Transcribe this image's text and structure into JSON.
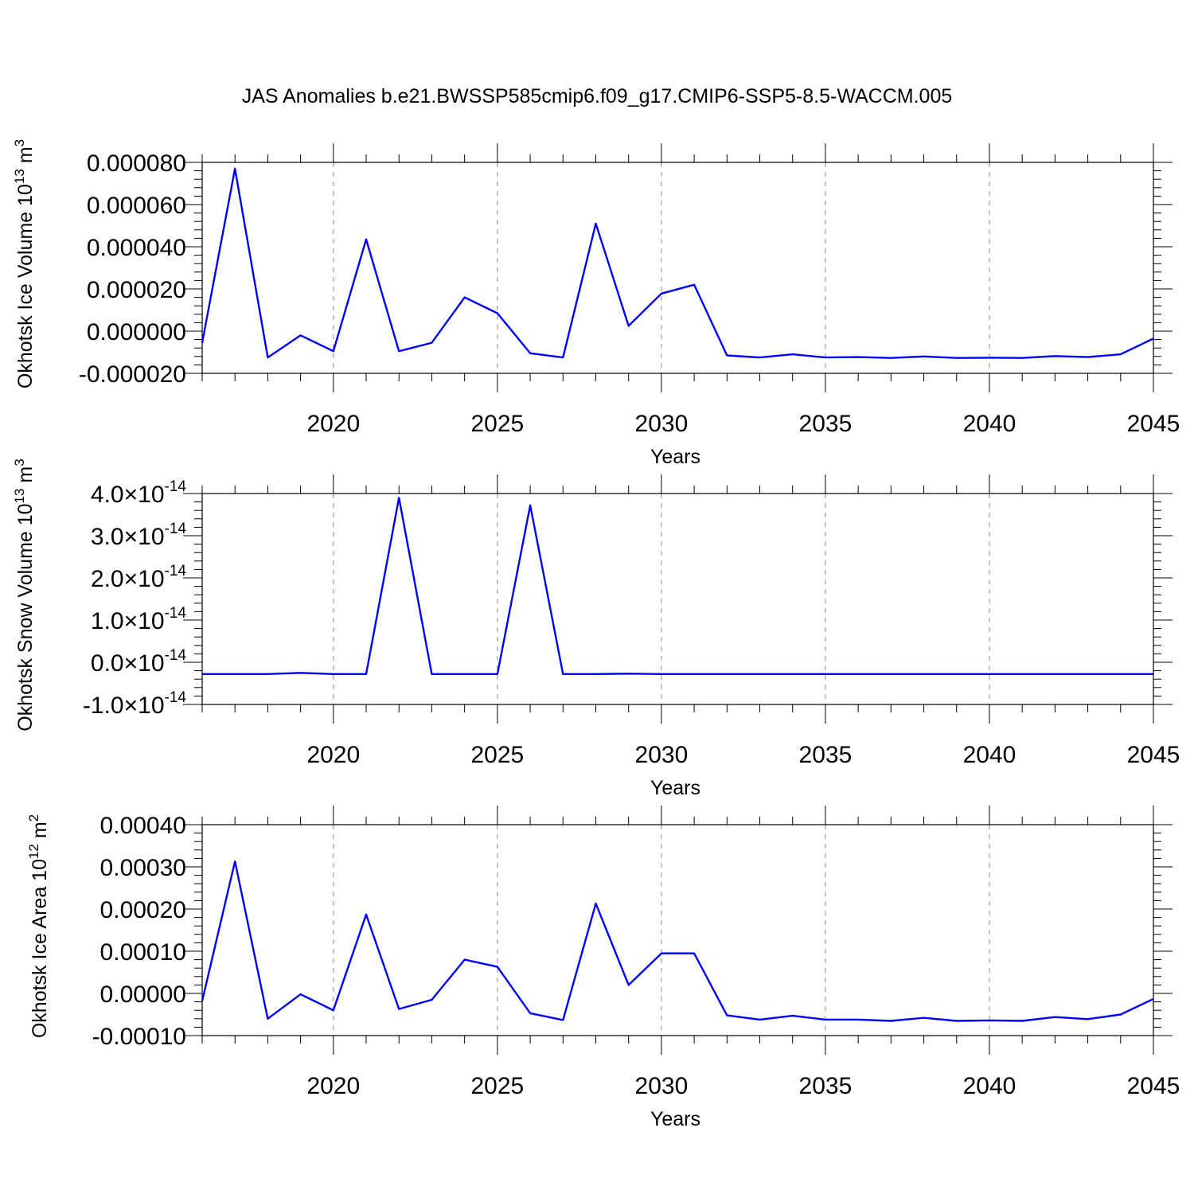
{
  "figure": {
    "title": "JAS Anomalies b.e21.BWSSP585cmip6.f09_g17.CMIP6-SSP5-8.5-WACCM.005"
  },
  "colors": {
    "series": "#0000ff",
    "grid": "#888888",
    "axis": "#000000"
  },
  "chart_data": [
    {
      "type": "line",
      "title": "",
      "xlabel": "Years",
      "ylabel": "Okhotsk Ice Volume",
      "ylabel_unit": {
        "base": "10",
        "exp": "13",
        "unit": "m",
        "unit_exp": "3"
      },
      "xlim": [
        2016,
        2045
      ],
      "ylim": [
        -2e-05,
        8e-05
      ],
      "x_ticks": [
        2020,
        2025,
        2030,
        2035,
        2040,
        2045
      ],
      "x_tick_labels": [
        "2020",
        "2025",
        "2030",
        "2035",
        "2040",
        "2045"
      ],
      "y_ticks": [
        -2e-05,
        0.0,
        2e-05,
        4e-05,
        6e-05,
        8e-05
      ],
      "y_tick_labels": [
        "-0.000020",
        "0.000000",
        "0.000020",
        "0.000040",
        "0.000060",
        "0.000080"
      ],
      "grid": "vertical dashed at major x ticks",
      "x": [
        2016,
        2017,
        2018,
        2019,
        2020,
        2021,
        2022,
        2023,
        2024,
        2025,
        2026,
        2027,
        2028,
        2029,
        2030,
        2031,
        2032,
        2033,
        2034,
        2035,
        2036,
        2037,
        2038,
        2039,
        2040,
        2041,
        2042,
        2043,
        2044,
        2045
      ],
      "series": [
        {
          "values": [
            -5.5e-06,
            7.7e-05,
            -1.25e-05,
            -2e-06,
            -9.5e-06,
            4.35e-05,
            -9.5e-06,
            -5.5e-06,
            1.6e-05,
            8.5e-06,
            -1.05e-05,
            -1.25e-05,
            5.1e-05,
            2.5e-06,
            1.78e-05,
            2.2e-05,
            -1.15e-05,
            -1.25e-05,
            -1.1e-05,
            -1.25e-05,
            -1.23e-05,
            -1.27e-05,
            -1.2e-05,
            -1.27e-05,
            -1.26e-05,
            -1.27e-05,
            -1.18e-05,
            -1.23e-05,
            -1.1e-05,
            -3.5e-06
          ]
        }
      ]
    },
    {
      "type": "line",
      "title": "",
      "xlabel": "Years",
      "ylabel": "Okhotsk Snow Volume",
      "ylabel_unit": {
        "base": "10",
        "exp": "13",
        "unit": "m",
        "unit_exp": "3"
      },
      "xlim": [
        2016,
        2045
      ],
      "ylim": [
        -1e-14,
        4e-14
      ],
      "x_ticks": [
        2020,
        2025,
        2030,
        2035,
        2040,
        2045
      ],
      "x_tick_labels": [
        "2020",
        "2025",
        "2030",
        "2035",
        "2040",
        "2045"
      ],
      "y_ticks": [
        -1e-14,
        0.0,
        1e-14,
        2e-14,
        3e-14,
        4e-14
      ],
      "y_tick_labels": [
        {
          "mantissa": "-1.0",
          "times": "×",
          "base": "10",
          "exp": "-14"
        },
        {
          "mantissa": "0.0",
          "times": "×",
          "base": "10",
          "exp": "-14"
        },
        {
          "mantissa": "1.0",
          "times": "×",
          "base": "10",
          "exp": "-14"
        },
        {
          "mantissa": "2.0",
          "times": "×",
          "base": "10",
          "exp": "-14"
        },
        {
          "mantissa": "3.0",
          "times": "×",
          "base": "10",
          "exp": "-14"
        },
        {
          "mantissa": "4.0",
          "times": "×",
          "base": "10",
          "exp": "-14"
        }
      ],
      "grid": "vertical dashed at major x ticks",
      "x": [
        2016,
        2017,
        2018,
        2019,
        2020,
        2021,
        2022,
        2023,
        2024,
        2025,
        2026,
        2027,
        2028,
        2029,
        2030,
        2031,
        2032,
        2033,
        2034,
        2035,
        2036,
        2037,
        2038,
        2039,
        2040,
        2041,
        2042,
        2043,
        2044,
        2045
      ],
      "series": [
        {
          "values": [
            -2.8e-15,
            -2.8e-15,
            -2.8e-15,
            -2.5e-15,
            -2.8e-15,
            -2.8e-15,
            3.9e-14,
            -2.8e-15,
            -2.8e-15,
            -2.8e-15,
            3.72e-14,
            -2.8e-15,
            -2.8e-15,
            -2.7e-15,
            -2.8e-15,
            -2.8e-15,
            -2.8e-15,
            -2.8e-15,
            -2.8e-15,
            -2.8e-15,
            -2.8e-15,
            -2.8e-15,
            -2.8e-15,
            -2.8e-15,
            -2.8e-15,
            -2.8e-15,
            -2.8e-15,
            -2.8e-15,
            -2.8e-15,
            -2.8e-15
          ]
        }
      ]
    },
    {
      "type": "line",
      "title": "",
      "xlabel": "Years",
      "ylabel": "Okhotsk Ice Area",
      "ylabel_unit": {
        "base": "10",
        "exp": "12",
        "unit": "m",
        "unit_exp": "2"
      },
      "xlim": [
        2016,
        2045
      ],
      "ylim": [
        -0.0001,
        0.0004
      ],
      "x_ticks": [
        2020,
        2025,
        2030,
        2035,
        2040,
        2045
      ],
      "x_tick_labels": [
        "2020",
        "2025",
        "2030",
        "2035",
        "2040",
        "2045"
      ],
      "y_ticks": [
        -0.0001,
        0.0,
        0.0001,
        0.0002,
        0.0003,
        0.0004
      ],
      "y_tick_labels": [
        "-0.00010",
        "0.00000",
        "0.00010",
        "0.00020",
        "0.00030",
        "0.00040"
      ],
      "grid": "vertical dashed at major x ticks",
      "x": [
        2016,
        2017,
        2018,
        2019,
        2020,
        2021,
        2022,
        2023,
        2024,
        2025,
        2026,
        2027,
        2028,
        2029,
        2030,
        2031,
        2032,
        2033,
        2034,
        2035,
        2036,
        2037,
        2038,
        2039,
        2040,
        2041,
        2042,
        2043,
        2044,
        2045
      ],
      "series": [
        {
          "values": [
            -1.8e-05,
            0.000313,
            -6e-05,
            -2e-06,
            -4e-05,
            0.000187,
            -3.7e-05,
            -1.5e-05,
            8e-05,
            6.3e-05,
            -4.7e-05,
            -6.3e-05,
            0.000213,
            2e-05,
            9.5e-05,
            9.5e-05,
            -5.2e-05,
            -6.2e-05,
            -5.3e-05,
            -6.2e-05,
            -6.2e-05,
            -6.5e-05,
            -5.8e-05,
            -6.5e-05,
            -6.4e-05,
            -6.5e-05,
            -5.6e-05,
            -6.1e-05,
            -5e-05,
            -1.3e-05
          ]
        }
      ]
    }
  ]
}
